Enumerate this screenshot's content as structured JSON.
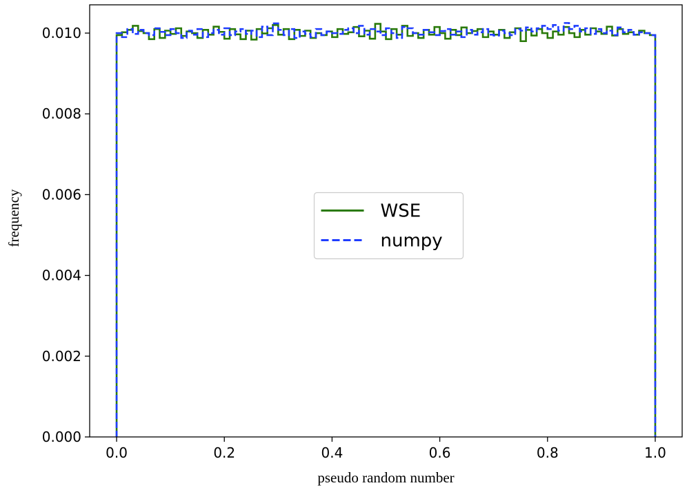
{
  "chart_data": {
    "type": "histogram-step",
    "title": "",
    "xlabel": "pseudo random number",
    "ylabel": "frequency",
    "xlim": [
      -0.05,
      1.05
    ],
    "ylim": [
      0,
      0.0107
    ],
    "xticks": [
      "0.0",
      "0.2",
      "0.4",
      "0.6",
      "0.8",
      "1.0"
    ],
    "yticks": [
      "0.000",
      "0.002",
      "0.004",
      "0.006",
      "0.008",
      "0.010"
    ],
    "bins": 100,
    "bin_range": [
      0,
      1
    ],
    "grid": false,
    "legend_position": "center",
    "series": [
      {
        "name": "WSE",
        "color": "#2a7a0a",
        "style": "solid",
        "values": [
          0.00995,
          0.01002,
          0.01008,
          0.01018,
          0.01005,
          0.01,
          0.00985,
          0.0101,
          0.00988,
          0.01006,
          0.00998,
          0.01012,
          0.00993,
          0.01004,
          0.01,
          0.00988,
          0.01008,
          0.00996,
          0.01016,
          0.01003,
          0.00986,
          0.0101,
          0.00997,
          0.00985,
          0.01006,
          0.00984,
          0.0101,
          0.00999,
          0.01012,
          0.0102,
          0.00996,
          0.0101,
          0.00985,
          0.01008,
          0.00993,
          0.01006,
          0.00988,
          0.01,
          0.00995,
          0.01004,
          0.0099,
          0.0101,
          0.00998,
          0.01002,
          0.01015,
          0.00992,
          0.01006,
          0.00986,
          0.01023,
          0.01004,
          0.00985,
          0.0101,
          0.00996,
          0.01018,
          0.00993,
          0.01,
          0.00988,
          0.01008,
          0.00996,
          0.01015,
          0.01,
          0.00986,
          0.01008,
          0.00995,
          0.01014,
          0.01,
          0.01005,
          0.0101,
          0.0099,
          0.01004,
          0.00996,
          0.01008,
          0.00988,
          0.01002,
          0.01012,
          0.0098,
          0.01008,
          0.00994,
          0.0101,
          0.01,
          0.00988,
          0.01004,
          0.00996,
          0.01015,
          0.01,
          0.0099,
          0.01008,
          0.00996,
          0.01012,
          0.01004,
          0.00998,
          0.01016,
          0.00994,
          0.0101,
          0.00998,
          0.01002,
          0.00996,
          0.01006,
          0.01,
          0.00995
        ]
      },
      {
        "name": "numpy",
        "color": "#1f3dff",
        "style": "dashed",
        "values": [
          0.01,
          0.0099,
          0.0101,
          0.00998,
          0.01008,
          0.01,
          0.00995,
          0.01012,
          0.01003,
          0.00995,
          0.0101,
          0.01,
          0.00988,
          0.01006,
          0.00996,
          0.0101,
          0.0099,
          0.01,
          0.01008,
          0.00996,
          0.01012,
          0.00995,
          0.01004,
          0.0101,
          0.00998,
          0.01006,
          0.0099,
          0.01016,
          0.00995,
          0.01024,
          0.01008,
          0.00995,
          0.0101,
          0.00988,
          0.01004,
          0.00998,
          0.0099,
          0.0101,
          0.00995,
          0.01004,
          0.01,
          0.00998,
          0.01008,
          0.01012,
          0.01,
          0.01018,
          0.00996,
          0.0101,
          0.01004,
          0.00995,
          0.01012,
          0.01,
          0.00988,
          0.01015,
          0.01012,
          0.01,
          0.00996,
          0.01008,
          0.01002,
          0.00995,
          0.01005,
          0.0101,
          0.00996,
          0.01004,
          0.0099,
          0.01008,
          0.00996,
          0.01002,
          0.0101,
          0.00996,
          0.00994,
          0.01006,
          0.01,
          0.00995,
          0.0101,
          0.01006,
          0.01014,
          0.01004,
          0.01012,
          0.01018,
          0.0101,
          0.0102,
          0.01006,
          0.01025,
          0.0101,
          0.01018,
          0.01004,
          0.01012,
          0.00998,
          0.0101,
          0.01,
          0.01006,
          0.00995,
          0.01014,
          0.01002,
          0.01008,
          0.00996,
          0.01002,
          0.01,
          0.00995
        ]
      }
    ]
  }
}
